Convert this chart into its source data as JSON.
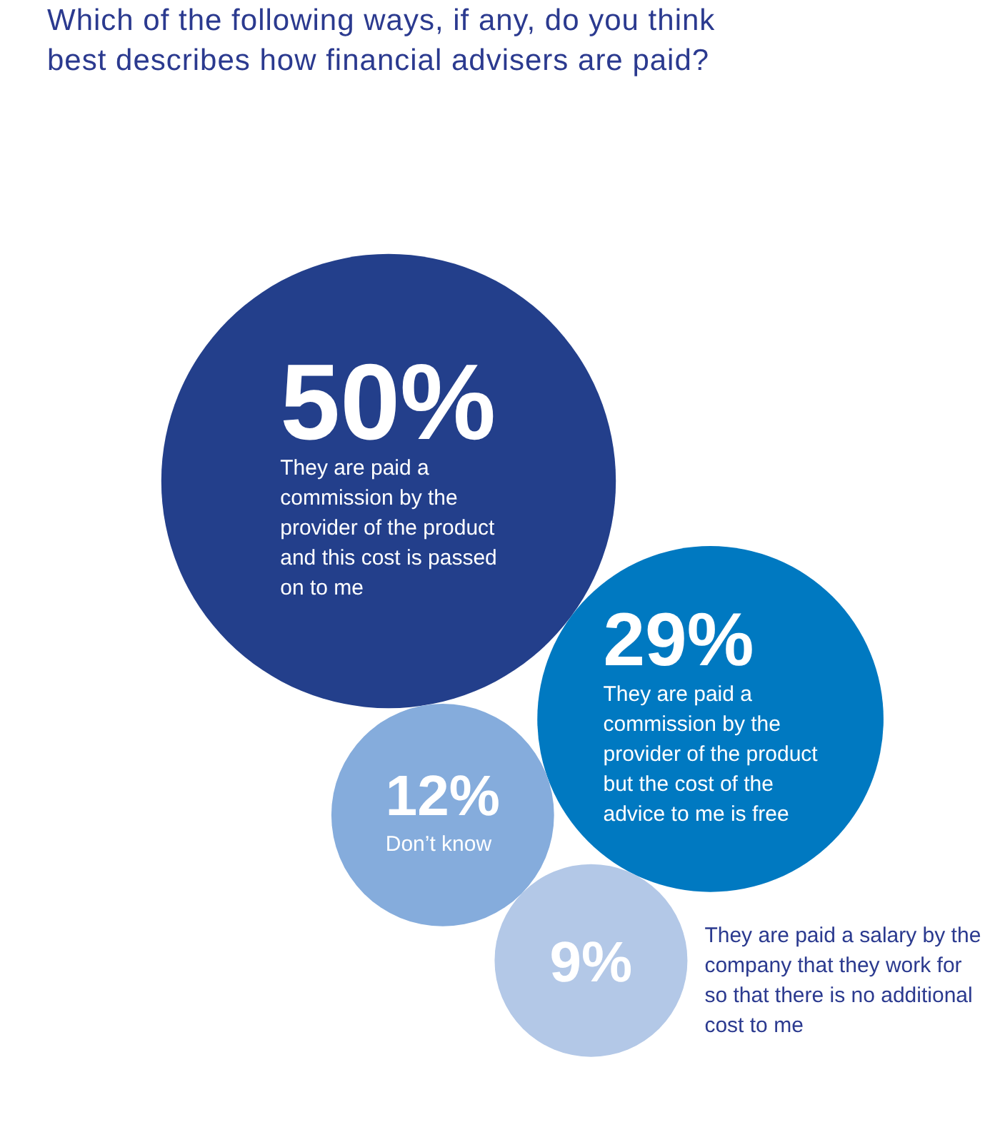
{
  "chart_data": {
    "type": "other",
    "title": "Which of the following ways, if any, do you think best describes how financial advisers are paid?",
    "categories": [
      "They are paid a commission by the provider of the product and this cost is passed on to me",
      "They are paid a commission by the provider of the product but the cost of the advice to me is free",
      "Don’t know",
      "They are paid a salary by the company that they work for so that there is no additional cost to me"
    ],
    "values": [
      50,
      29,
      12,
      9
    ],
    "colors": [
      "#233f8b",
      "#0079c1",
      "#85acdc",
      "#b3c8e7"
    ],
    "value_labels": [
      "50%",
      "29%",
      "12%",
      "9%"
    ]
  }
}
